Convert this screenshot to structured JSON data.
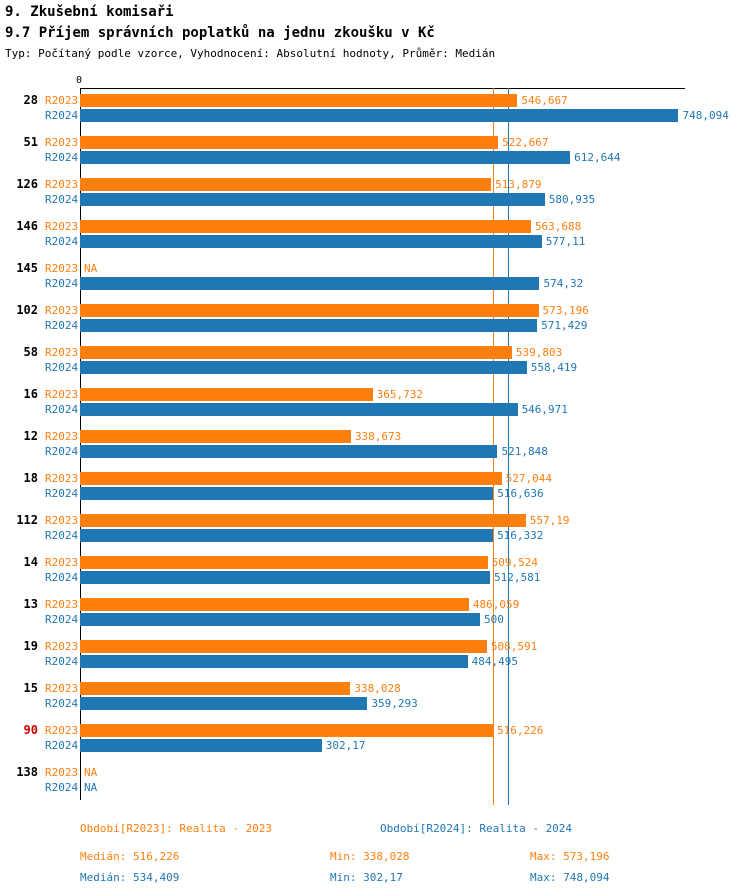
{
  "header": {
    "title": "9. Zkušební komisaři",
    "subtitle": "9.7 Příjem správních poplatků na jednu zkoušku v Kč",
    "meta": "Typ: Počítaný podle vzorce, Vyhodnocení: Absolutní hodnoty, Průměr: Medián"
  },
  "colors": {
    "r2023": "#ff7f0e",
    "r2024": "#1f77b4",
    "highlight": "#cc0000",
    "axis": "#000000"
  },
  "chart_data": {
    "type": "bar",
    "orientation": "horizontal-grouped",
    "title": "9.7 Příjem správních poplatků na jednu zkoušku v Kč",
    "unit": "Kč",
    "axis": {
      "zero_label": "0",
      "xlim": [
        0,
        755
      ]
    },
    "categories": [
      "28",
      "51",
      "126",
      "146",
      "145",
      "102",
      "58",
      "16",
      "12",
      "18",
      "112",
      "14",
      "13",
      "19",
      "15",
      "90",
      "138"
    ],
    "highlighted_categories": [
      "90"
    ],
    "series": [
      {
        "name": "R2023",
        "color": "#ff7f0e",
        "values": [
          546.667,
          522.667,
          513.879,
          563.688,
          null,
          573.196,
          539.803,
          365.732,
          338.673,
          527.044,
          557.19,
          509.524,
          486.059,
          508.591,
          338.028,
          516.226,
          null
        ],
        "labels": [
          "546,667",
          "522,667",
          "513,879",
          "563,688",
          "NA",
          "573,196",
          "539,803",
          "365,732",
          "338,673",
          "527,044",
          "557,19",
          "509,524",
          "486,059",
          "508,591",
          "338,028",
          "516,226",
          "NA"
        ]
      },
      {
        "name": "R2024",
        "color": "#1f77b4",
        "values": [
          748.094,
          612.644,
          580.935,
          577.11,
          574.32,
          571.429,
          558.419,
          546.971,
          521.848,
          516.636,
          516.332,
          512.581,
          500,
          484.495,
          359.293,
          302.17,
          null
        ],
        "labels": [
          "748,094",
          "612,644",
          "580,935",
          "577,11",
          "574,32",
          "571,429",
          "558,419",
          "546,971",
          "521,848",
          "516,636",
          "516,332",
          "512,581",
          "500",
          "484,495",
          "359,293",
          "302,17",
          "NA"
        ]
      }
    ],
    "reference_lines": [
      {
        "series": "r2023",
        "label": "Medián R2023",
        "value": 516.226,
        "color": "#ff7f0e"
      },
      {
        "series": "r2024",
        "label": "Medián R2024",
        "value": 534.409,
        "color": "#1f77b4"
      }
    ]
  },
  "footer": {
    "legend": [
      {
        "series": "R2023",
        "label": "Období[R2023]: Realita - 2023"
      },
      {
        "series": "R2024",
        "label": "Období[R2024]: Realita - 2024"
      }
    ],
    "stats": [
      {
        "series": "R2023",
        "median": "Medián: 516,226",
        "min": "Min: 338,028",
        "max": "Max: 573,196"
      },
      {
        "series": "R2024",
        "median": "Medián: 534,409",
        "min": "Min: 302,17",
        "max": "Max: 748,094"
      }
    ]
  }
}
